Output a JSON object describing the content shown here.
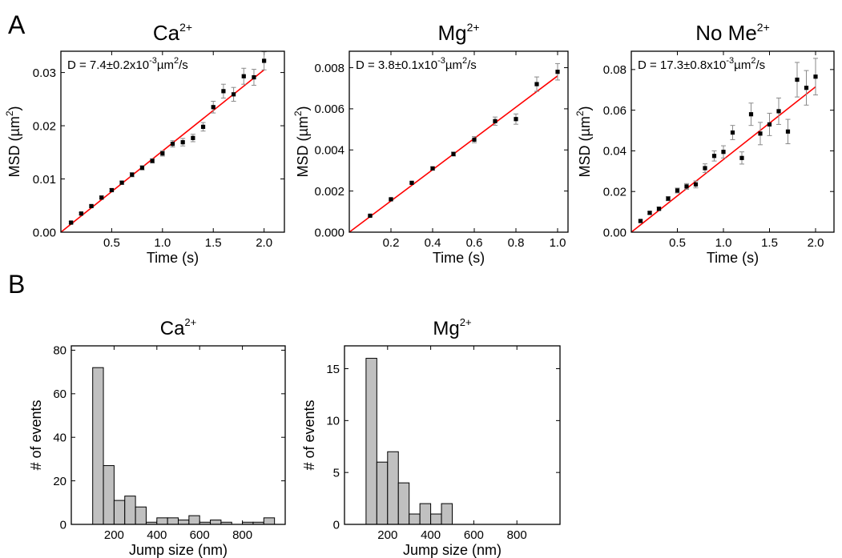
{
  "panel_labels": [
    "A",
    "B"
  ],
  "colors": {
    "fit_line": "#ff0000",
    "markers": "#000000",
    "error_bars": "#8a8a8a",
    "hist_fill": "#c0c0c0",
    "hist_edge": "#000000"
  },
  "chart_data": [
    {
      "id": "msd_ca",
      "type": "scatter",
      "title": "Ca",
      "title_sup": "2+",
      "xlabel": "Time (s)",
      "ylabel": "MSD (µm",
      "ylabel_sup": "2",
      "ylabel_end": ")",
      "xlim": [
        0,
        2.2
      ],
      "ylim": [
        0,
        0.034
      ],
      "xticks": [
        0.5,
        1.0,
        1.5,
        2.0
      ],
      "xtick_labels": [
        "0.5",
        "1.0",
        "1.5",
        "2.0"
      ],
      "yticks": [
        0,
        0.01,
        0.02,
        0.03
      ],
      "ytick_labels": [
        "0.00",
        "0.01",
        "0.02",
        "0.03"
      ],
      "annotation": {
        "pre": "D = 7.4±0.2x10",
        "sup1": "-3",
        "mid": "µm",
        "sup2": "2",
        "post": "/s"
      },
      "x": [
        0.1,
        0.2,
        0.3,
        0.4,
        0.5,
        0.6,
        0.7,
        0.8,
        0.9,
        1.0,
        1.1,
        1.2,
        1.3,
        1.4,
        1.5,
        1.6,
        1.7,
        1.8,
        1.9,
        2.0
      ],
      "y": [
        0.0018,
        0.0035,
        0.0049,
        0.0065,
        0.0079,
        0.0093,
        0.0108,
        0.0121,
        0.0134,
        0.0148,
        0.0166,
        0.0169,
        0.0177,
        0.0198,
        0.0235,
        0.0265,
        0.0259,
        0.0293,
        0.0291,
        0.0322
      ],
      "yerr": [
        0.0002,
        0.0002,
        0.0002,
        0.0003,
        0.0003,
        0.0003,
        0.0004,
        0.0004,
        0.0004,
        0.0005,
        0.0006,
        0.0007,
        0.0007,
        0.0008,
        0.0011,
        0.0013,
        0.0013,
        0.0015,
        0.0015,
        0.0017
      ],
      "fit": {
        "x": [
          0,
          2.0
        ],
        "y": [
          0,
          0.0305
        ]
      }
    },
    {
      "id": "msd_mg",
      "type": "scatter",
      "title": "Mg",
      "title_sup": "2+",
      "xlabel": "Time (s)",
      "ylabel": "MSD (µm",
      "ylabel_sup": "2",
      "ylabel_end": ")",
      "xlim": [
        0,
        1.05
      ],
      "ylim": [
        0,
        0.0088
      ],
      "xticks": [
        0.2,
        0.4,
        0.6,
        0.8,
        1.0
      ],
      "xtick_labels": [
        "0.2",
        "0.4",
        "0.6",
        "0.8",
        "1.0"
      ],
      "yticks": [
        0,
        0.002,
        0.004,
        0.006,
        0.008
      ],
      "ytick_labels": [
        "0.000",
        "0.002",
        "0.004",
        "0.006",
        "0.008"
      ],
      "annotation": {
        "pre": "D = 3.8±0.1x10",
        "sup1": "-3",
        "mid": "µm",
        "sup2": "2",
        "post": "/s"
      },
      "x": [
        0.1,
        0.2,
        0.3,
        0.4,
        0.5,
        0.6,
        0.7,
        0.8,
        0.9,
        1.0
      ],
      "y": [
        0.0008,
        0.0016,
        0.0024,
        0.0031,
        0.0038,
        0.0045,
        0.0054,
        0.0055,
        0.0072,
        0.0078
      ],
      "yerr": [
        3e-05,
        4e-05,
        5e-05,
        8e-05,
        0.0001,
        0.00015,
        0.0002,
        0.00025,
        0.00035,
        0.0004
      ],
      "fit": {
        "x": [
          0,
          1.0
        ],
        "y": [
          0,
          0.0076
        ]
      }
    },
    {
      "id": "msd_nome",
      "type": "scatter",
      "title": "No Me",
      "title_sup": "2+",
      "xlabel": "Time (s)",
      "ylabel": "MSD (µm",
      "ylabel_sup": "2",
      "ylabel_end": ")",
      "xlim": [
        0,
        2.2
      ],
      "ylim": [
        0,
        0.089
      ],
      "xticks": [
        0.5,
        1.0,
        1.5,
        2.0
      ],
      "xtick_labels": [
        "0.5",
        "1.0",
        "1.5",
        "2.0"
      ],
      "yticks": [
        0,
        0.02,
        0.04,
        0.06,
        0.08
      ],
      "ytick_labels": [
        "0.00",
        "0.02",
        "0.04",
        "0.06",
        "0.08"
      ],
      "annotation": {
        "pre": "D = 17.3±0.8x10",
        "sup1": "-3",
        "mid": "µm",
        "sup2": "2",
        "post": "/s"
      },
      "x": [
        0.1,
        0.2,
        0.3,
        0.4,
        0.5,
        0.6,
        0.7,
        0.8,
        0.9,
        1.0,
        1.1,
        1.2,
        1.3,
        1.4,
        1.5,
        1.6,
        1.7,
        1.8,
        1.9,
        2.0
      ],
      "y": [
        0.0055,
        0.0095,
        0.0115,
        0.0165,
        0.0205,
        0.0225,
        0.0235,
        0.0315,
        0.0375,
        0.0395,
        0.049,
        0.0365,
        0.058,
        0.0485,
        0.053,
        0.0595,
        0.0495,
        0.075,
        0.071,
        0.0765
      ],
      "yerr": [
        0.0005,
        0.0006,
        0.0008,
        0.001,
        0.0012,
        0.0014,
        0.0017,
        0.0021,
        0.0025,
        0.003,
        0.0035,
        0.003,
        0.0055,
        0.0055,
        0.0055,
        0.0065,
        0.006,
        0.0085,
        0.0085,
        0.009
      ],
      "fit": {
        "x": [
          0,
          2.0
        ],
        "y": [
          0,
          0.0715
        ]
      }
    },
    {
      "id": "hist_ca",
      "type": "bar",
      "title": "Ca",
      "title_sup": "2+",
      "xlabel": "Jump size (nm)",
      "ylabel": "# of events",
      "xlim": [
        0,
        1000
      ],
      "ylim": [
        0,
        82
      ],
      "xticks": [
        200,
        400,
        600,
        800
      ],
      "xtick_labels": [
        "200",
        "400",
        "600",
        "800"
      ],
      "yticks": [
        0,
        20,
        40,
        60,
        80
      ],
      "ytick_labels": [
        "0",
        "20",
        "40",
        "60",
        "80"
      ],
      "bin_edges": [
        100,
        150,
        200,
        250,
        300,
        350,
        400,
        450,
        500,
        550,
        600,
        650,
        700,
        750,
        800,
        850,
        900,
        950
      ],
      "values": [
        72,
        27,
        11,
        13,
        8,
        1,
        3,
        3,
        2,
        4,
        1,
        2,
        1,
        0,
        1,
        1,
        3
      ]
    },
    {
      "id": "hist_mg",
      "type": "bar",
      "title": "Mg",
      "title_sup": "2+",
      "xlabel": "Jump size (nm)",
      "ylabel": "# of events",
      "xlim": [
        0,
        1000
      ],
      "ylim": [
        0,
        17.2
      ],
      "xticks": [
        200,
        400,
        600,
        800
      ],
      "xtick_labels": [
        "200",
        "400",
        "600",
        "800"
      ],
      "yticks": [
        0,
        5,
        10,
        15
      ],
      "ytick_labels": [
        "0",
        "5",
        "10",
        "15"
      ],
      "bin_edges": [
        100,
        150,
        200,
        250,
        300,
        350,
        400,
        450,
        500
      ],
      "values": [
        16,
        6,
        7,
        4,
        1,
        2,
        1,
        2
      ]
    }
  ]
}
